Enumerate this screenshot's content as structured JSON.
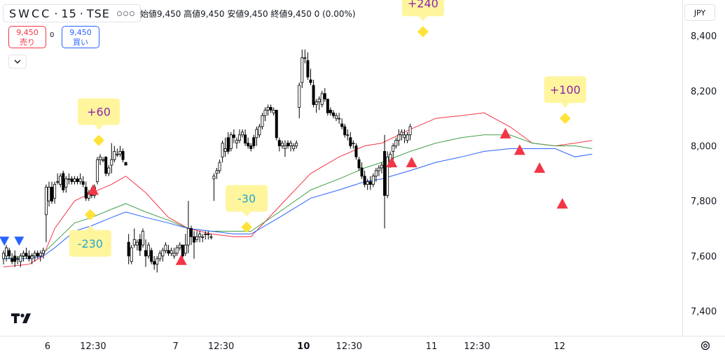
{
  "header": {
    "symbol": "SWCC",
    "interval": "15",
    "exchange": "TSE",
    "ohlc_text": "始値9,450  高値9,450  安値9,450  終値9,450  0 (0.00%)"
  },
  "trade": {
    "sell_price": "9,450",
    "sell_label": "売り",
    "spread": "0",
    "buy_price": "9,450",
    "buy_label": "買い"
  },
  "currency": "JPY",
  "icons": {
    "collapse": "chevron-down-icon",
    "settings": "gear-icon",
    "logo": "tradingview-logo"
  },
  "colors": {
    "up_candle": "#ffffff",
    "down_candle": "#000000",
    "ma_short": "#f23645",
    "ma_mid": "#43a047",
    "ma_long": "#2962ff",
    "sell_marker": "#f23645",
    "buy_marker": "#2962ff",
    "diamond": "#ffe23a",
    "label_bg": "#fff59d",
    "profit_text": "#8e24aa",
    "loss_text": "#26a6c9"
  },
  "chart_data": {
    "type": "candlestick",
    "ylim": [
      7310,
      8530
    ],
    "yticks": [
      7400,
      7600,
      7800,
      8000,
      8200,
      8400
    ],
    "ytick_labels": [
      "7,400",
      "7,600",
      "7,800",
      "8,000",
      "8,200",
      "8,400"
    ],
    "xticks": [
      {
        "label": "6",
        "bold": false,
        "t": 15.5
      },
      {
        "label": "12:30",
        "bold": false,
        "t": 31.5
      },
      {
        "label": "7",
        "bold": false,
        "t": 60.5
      },
      {
        "label": "12:30",
        "bold": false,
        "t": 76.5
      },
      {
        "label": "10",
        "bold": true,
        "t": 105.5
      },
      {
        "label": "12:30",
        "bold": false,
        "t": 121.5
      },
      {
        "label": "11",
        "bold": false,
        "t": 150.5
      },
      {
        "label": "12:30",
        "bold": false,
        "t": 166.5
      },
      {
        "label": "12",
        "bold": false,
        "t": 195.5
      }
    ],
    "candles": [
      [
        7590,
        7620,
        7570,
        7610
      ],
      [
        7600,
        7640,
        7580,
        7630
      ],
      [
        7620,
        7630,
        7590,
        7600
      ],
      [
        7590,
        7610,
        7570,
        7580
      ],
      [
        7600,
        7620,
        7560,
        7580
      ],
      [
        7590,
        7600,
        7570,
        7590
      ],
      [
        7580,
        7610,
        7560,
        7600
      ],
      [
        7600,
        7620,
        7580,
        7610
      ],
      [
        7610,
        7630,
        7590,
        7600
      ],
      [
        7600,
        7620,
        7580,
        7590
      ],
      [
        7590,
        7610,
        7570,
        7600
      ],
      [
        7600,
        7620,
        7580,
        7610
      ],
      [
        7610,
        7620,
        7590,
        7600
      ],
      [
        7600,
        7620,
        7580,
        7610
      ],
      [
        7610,
        7630,
        7590,
        7620
      ],
      [
        7750,
        7860,
        7650,
        7850
      ],
      [
        7800,
        7870,
        7780,
        7850
      ],
      [
        7850,
        7870,
        7790,
        7800
      ],
      [
        7810,
        7870,
        7790,
        7860
      ],
      [
        7870,
        7900,
        7860,
        7870
      ],
      [
        7860,
        7900,
        7850,
        7890
      ],
      [
        7900,
        7910,
        7830,
        7840
      ],
      [
        7850,
        7890,
        7830,
        7880
      ],
      [
        7880,
        7900,
        7860,
        7880
      ],
      [
        7880,
        7890,
        7860,
        7870
      ],
      [
        7870,
        7890,
        7860,
        7880
      ],
      [
        7880,
        7890,
        7860,
        7870
      ],
      [
        7870,
        7900,
        7860,
        7880
      ],
      [
        7870,
        7890,
        7850,
        7860
      ],
      [
        7850,
        7870,
        7800,
        7810
      ],
      [
        7810,
        7840,
        7800,
        7830
      ],
      [
        7830,
        7850,
        7810,
        7820
      ],
      [
        7820,
        7860,
        7810,
        7850
      ],
      [
        7870,
        7960,
        7860,
        7950
      ],
      [
        7950,
        7970,
        7930,
        7960
      ],
      [
        7950,
        7960,
        7940,
        7950
      ],
      [
        7960,
        7960,
        7890,
        7900
      ],
      [
        7900,
        7930,
        7890,
        7920
      ],
      [
        7930,
        8010,
        7900,
        7950
      ],
      [
        7950,
        8000,
        7940,
        7980
      ],
      [
        7970,
        7990,
        7960,
        7970
      ],
      [
        7970,
        8000,
        7960,
        7980
      ],
      [
        7980,
        7990,
        7940,
        7950
      ],
      [
        7940,
        7940,
        7930,
        7930
      ],
      [
        7650,
        7680,
        7570,
        7600
      ],
      [
        7580,
        7640,
        7570,
        7630
      ],
      [
        7640,
        7700,
        7630,
        7660
      ],
      [
        7640,
        7660,
        7620,
        7650
      ],
      [
        7660,
        7680,
        7600,
        7620
      ],
      [
        7640,
        7700,
        7630,
        7690
      ],
      [
        7620,
        7660,
        7560,
        7600
      ],
      [
        7600,
        7650,
        7590,
        7640
      ],
      [
        7620,
        7630,
        7570,
        7580
      ],
      [
        7580,
        7600,
        7550,
        7570
      ],
      [
        7570,
        7600,
        7540,
        7590
      ],
      [
        7590,
        7620,
        7580,
        7610
      ],
      [
        7600,
        7630,
        7580,
        7620
      ],
      [
        7620,
        7650,
        7610,
        7640
      ],
      [
        7620,
        7640,
        7600,
        7610
      ],
      [
        7610,
        7630,
        7600,
        7620
      ],
      [
        7600,
        7630,
        7590,
        7610
      ],
      [
        7610,
        7640,
        7600,
        7630
      ],
      [
        7630,
        7650,
        7620,
        7640
      ],
      [
        7640,
        7640,
        7590,
        7600
      ],
      [
        7610,
        7680,
        7600,
        7640
      ],
      [
        7640,
        7800,
        7610,
        7700
      ],
      [
        7700,
        7710,
        7640,
        7670
      ],
      [
        7670,
        7690,
        7590,
        7650
      ],
      [
        7660,
        7690,
        7650,
        7670
      ],
      [
        7670,
        7690,
        7650,
        7680
      ],
      [
        7670,
        7680,
        7650,
        7670
      ],
      [
        7680,
        7690,
        7660,
        7680
      ],
      [
        7680,
        7690,
        7660,
        7680
      ],
      [
        7670,
        7680,
        7660,
        7670
      ],
      [
        7880,
        7900,
        7800,
        7890
      ],
      [
        7900,
        7920,
        7880,
        7910
      ],
      [
        7910,
        7950,
        7900,
        7940
      ],
      [
        7960,
        8020,
        7940,
        8010
      ],
      [
        7980,
        8030,
        7960,
        7990
      ],
      [
        8030,
        8050,
        7970,
        7980
      ],
      [
        7990,
        8050,
        7980,
        8040
      ],
      [
        8040,
        8060,
        8010,
        8030
      ],
      [
        8010,
        8030,
        7990,
        8020
      ],
      [
        8020,
        8060,
        8010,
        8040
      ],
      [
        8040,
        8060,
        8030,
        8050
      ],
      [
        8040,
        8060,
        8000,
        8010
      ],
      [
        8010,
        8030,
        7990,
        8000
      ],
      [
        8000,
        8010,
        7980,
        7990
      ],
      [
        8030,
        8040,
        7990,
        8000
      ],
      [
        8030,
        8070,
        8000,
        8060
      ],
      [
        8040,
        8080,
        8030,
        8070
      ],
      [
        8070,
        8120,
        8060,
        8110
      ],
      [
        8110,
        8140,
        8090,
        8130
      ],
      [
        8130,
        8150,
        8110,
        8140
      ],
      [
        8140,
        8150,
        8120,
        8130
      ],
      [
        8120,
        8140,
        8110,
        8130
      ],
      [
        8130,
        8130,
        8020,
        8030
      ],
      [
        8020,
        8030,
        7980,
        8000
      ],
      [
        8000,
        8020,
        7990,
        8010
      ],
      [
        7990,
        8020,
        7960,
        8000
      ],
      [
        8010,
        8020,
        7990,
        8000
      ],
      [
        8000,
        8020,
        7980,
        8010
      ],
      [
        7990,
        8010,
        7980,
        8000
      ],
      [
        8000,
        8020,
        7990,
        8010
      ],
      [
        8140,
        8230,
        8100,
        8220
      ],
      [
        8230,
        8350,
        8210,
        8320
      ],
      [
        8320,
        8350,
        8300,
        8320
      ],
      [
        8310,
        8340,
        8240,
        8250
      ],
      [
        8240,
        8280,
        8220,
        8230
      ],
      [
        8220,
        8240,
        8140,
        8150
      ],
      [
        8150,
        8170,
        8120,
        8160
      ],
      [
        8160,
        8180,
        8130,
        8170
      ],
      [
        8150,
        8200,
        8140,
        8190
      ],
      [
        8190,
        8210,
        8160,
        8170
      ],
      [
        8170,
        8170,
        8110,
        8120
      ],
      [
        8130,
        8140,
        8110,
        8120
      ],
      [
        8120,
        8130,
        8100,
        8110
      ],
      [
        8100,
        8120,
        8090,
        8110
      ],
      [
        8100,
        8120,
        8080,
        8100
      ],
      [
        8080,
        8100,
        8060,
        8070
      ],
      [
        8070,
        8080,
        8030,
        8040
      ],
      [
        8040,
        8060,
        8020,
        8040
      ],
      [
        8030,
        8050,
        7990,
        8000
      ],
      [
        8010,
        8020,
        7990,
        8010
      ],
      [
        8000,
        8010,
        7950,
        7960
      ],
      [
        7950,
        7960,
        7910,
        7920
      ],
      [
        7920,
        7940,
        7880,
        7890
      ],
      [
        7890,
        7910,
        7850,
        7860
      ],
      [
        7860,
        7880,
        7840,
        7870
      ],
      [
        7870,
        7890,
        7840,
        7860
      ],
      [
        7860,
        7900,
        7850,
        7890
      ],
      [
        7890,
        7920,
        7870,
        7910
      ],
      [
        7910,
        7930,
        7890,
        7920
      ],
      [
        7920,
        7940,
        7900,
        7930
      ],
      [
        7980,
        8040,
        7700,
        7820
      ],
      [
        7820,
        7980,
        7810,
        7960
      ],
      [
        7940,
        7980,
        7920,
        7970
      ],
      [
        7980,
        8010,
        7950,
        8000
      ],
      [
        8000,
        8030,
        7990,
        8020
      ],
      [
        8020,
        8060,
        8000,
        8040
      ],
      [
        8040,
        8060,
        8020,
        8050
      ],
      [
        8030,
        8060,
        8010,
        8040
      ],
      [
        8020,
        8050,
        8010,
        8040
      ],
      [
        8040,
        8080,
        8020,
        8070
      ]
    ],
    "ma_series": [
      {
        "key": "ma_short",
        "values": [
          [
            0,
            7560
          ],
          [
            9,
            7570
          ],
          [
            14,
            7600
          ],
          [
            18,
            7700
          ],
          [
            25,
            7800
          ],
          [
            31,
            7830
          ],
          [
            38,
            7860
          ],
          [
            43,
            7890
          ],
          [
            50,
            7830
          ],
          [
            58,
            7740
          ],
          [
            65,
            7700
          ],
          [
            73,
            7680
          ],
          [
            81,
            7670
          ],
          [
            87,
            7670
          ],
          [
            97,
            7780
          ],
          [
            108,
            7900
          ],
          [
            118,
            7960
          ],
          [
            127,
            8000
          ],
          [
            133,
            8010
          ],
          [
            143,
            8060
          ],
          [
            152,
            8100
          ],
          [
            161,
            8110
          ],
          [
            169,
            8120
          ],
          [
            178,
            8070
          ],
          [
            186,
            8010
          ],
          [
            194,
            8000
          ],
          [
            201,
            8010
          ],
          [
            207,
            8020
          ]
        ]
      },
      {
        "key": "ma_mid",
        "values": [
          [
            0,
            7590
          ],
          [
            9,
            7600
          ],
          [
            14,
            7610
          ],
          [
            18,
            7650
          ],
          [
            25,
            7720
          ],
          [
            31,
            7740
          ],
          [
            38,
            7770
          ],
          [
            43,
            7790
          ],
          [
            50,
            7760
          ],
          [
            58,
            7730
          ],
          [
            65,
            7700
          ],
          [
            73,
            7690
          ],
          [
            81,
            7690
          ],
          [
            87,
            7690
          ],
          [
            97,
            7760
          ],
          [
            108,
            7840
          ],
          [
            118,
            7880
          ],
          [
            127,
            7920
          ],
          [
            133,
            7940
          ],
          [
            143,
            7980
          ],
          [
            152,
            8010
          ],
          [
            161,
            8030
          ],
          [
            169,
            8040
          ],
          [
            178,
            8040
          ],
          [
            186,
            8010
          ],
          [
            194,
            8000
          ],
          [
            201,
            8000
          ],
          [
            207,
            7990
          ]
        ]
      },
      {
        "key": "ma_long",
        "values": [
          [
            0,
            7590
          ],
          [
            9,
            7590
          ],
          [
            14,
            7600
          ],
          [
            18,
            7630
          ],
          [
            25,
            7690
          ],
          [
            31,
            7710
          ],
          [
            38,
            7740
          ],
          [
            43,
            7760
          ],
          [
            50,
            7740
          ],
          [
            58,
            7720
          ],
          [
            65,
            7700
          ],
          [
            73,
            7690
          ],
          [
            81,
            7680
          ],
          [
            87,
            7680
          ],
          [
            97,
            7740
          ],
          [
            108,
            7810
          ],
          [
            118,
            7840
          ],
          [
            127,
            7870
          ],
          [
            133,
            7880
          ],
          [
            143,
            7910
          ],
          [
            152,
            7940
          ],
          [
            161,
            7960
          ],
          [
            169,
            7980
          ],
          [
            178,
            7990
          ],
          [
            186,
            7990
          ],
          [
            194,
            7990
          ],
          [
            201,
            7960
          ],
          [
            207,
            7970
          ]
        ]
      }
    ],
    "signals": [
      {
        "type": "down-triangle",
        "t": 0.3,
        "y": 7655
      },
      {
        "type": "down-triangle",
        "t": 5.5,
        "y": 7655
      },
      {
        "type": "up-triangle",
        "t": 31.5,
        "y": 7840
      },
      {
        "type": "up-triangle",
        "t": 62.5,
        "y": 7585
      },
      {
        "type": "up-triangle",
        "t": 136.5,
        "y": 7940
      },
      {
        "type": "up-triangle",
        "t": 143.5,
        "y": 7940
      },
      {
        "type": "up-triangle",
        "t": 176.5,
        "y": 8045
      },
      {
        "type": "up-triangle",
        "t": 181.5,
        "y": 7985
      },
      {
        "type": "up-triangle",
        "t": 188.5,
        "y": 7920
      },
      {
        "type": "up-triangle",
        "t": 196.5,
        "y": 7790
      }
    ],
    "trades": [
      {
        "label": "+60",
        "kind": "profit",
        "t": 33.5,
        "y": 8020,
        "side": "above"
      },
      {
        "label": "-230",
        "kind": "loss",
        "t": 30.5,
        "y": 7750,
        "side": "below"
      },
      {
        "label": "-30",
        "kind": "loss",
        "t": 85.5,
        "y": 7705,
        "side": "above"
      },
      {
        "label": "+240",
        "kind": "profit",
        "t": 147.5,
        "y": 8415,
        "side": "above"
      },
      {
        "label": "+100",
        "kind": "profit",
        "t": 197.5,
        "y": 8100,
        "side": "above"
      }
    ]
  }
}
